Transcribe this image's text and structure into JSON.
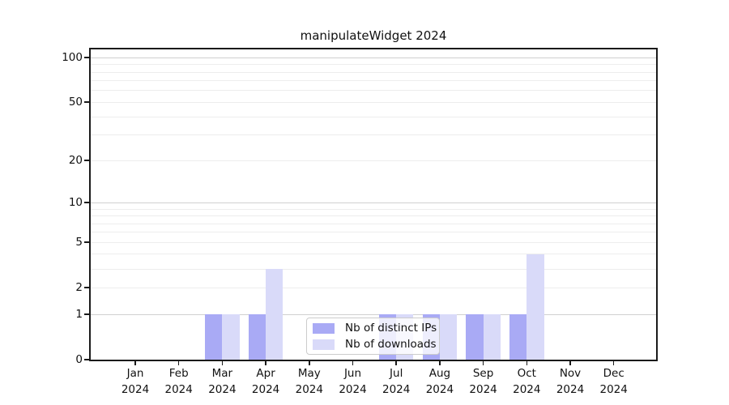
{
  "colors": {
    "bar_distinct_ips": "#a9aaf5",
    "bar_downloads": "#d9daf9",
    "grid_major": "#d0d0d0",
    "grid_minor": "#ededed",
    "axis": "#1a1a1a",
    "text": "#111111",
    "legend_border": "#cccccc"
  },
  "chart_data": {
    "type": "bar",
    "title": "manipulateWidget 2024",
    "categories": [
      "Jan",
      "Feb",
      "Mar",
      "Apr",
      "May",
      "Jun",
      "Jul",
      "Aug",
      "Sep",
      "Oct",
      "Nov",
      "Dec"
    ],
    "category_year": "2024",
    "series": [
      {
        "name": "Nb of distinct IPs",
        "color": "#a9aaf5",
        "values": [
          0,
          0,
          1,
          1,
          0,
          0,
          1,
          1,
          1,
          1,
          0,
          0
        ]
      },
      {
        "name": "Nb of downloads",
        "color": "#d9daf9",
        "values": [
          0,
          0,
          1,
          3,
          0,
          0,
          1,
          1,
          1,
          4,
          0,
          0
        ]
      }
    ],
    "xlabel": "",
    "ylabel": "",
    "yscale": "log1p",
    "ylim": [
      0,
      113
    ],
    "ytick_values": [
      0,
      1,
      2,
      5,
      10,
      20,
      50,
      100
    ],
    "grid": {
      "major_values": [
        1,
        10,
        100
      ],
      "minor_values": [
        2,
        3,
        4,
        5,
        6,
        7,
        8,
        9,
        20,
        30,
        40,
        50,
        60,
        70,
        80,
        90
      ]
    },
    "legend": {
      "position": "bottom-center"
    }
  }
}
